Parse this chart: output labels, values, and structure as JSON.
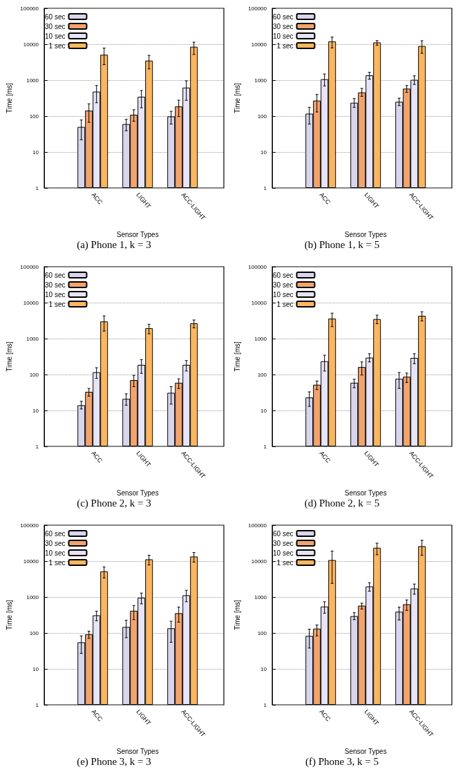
{
  "chart_data": [
    {
      "type": "bar",
      "title": "(a) Phone 1, k = 3",
      "xlabel": "Sensor Types",
      "ylabel": "Time [ms]",
      "categories": [
        "ACC",
        "LIGHT",
        "ACC-LIGHT"
      ],
      "log": true,
      "grid": "y",
      "legend": "top left",
      "ylim": [
        1,
        100000
      ],
      "yticks": [
        1,
        10,
        100,
        1000,
        10000,
        100000
      ],
      "series": [
        {
          "name": "60 sec",
          "color": "#d9d5ec",
          "values": [
            50,
            60,
            98
          ],
          "errors": [
            [
              22,
              78
            ],
            [
              39,
              81
            ],
            [
              60,
              136
            ]
          ]
        },
        {
          "name": "30 sec",
          "color": "#f2a46e",
          "values": [
            142,
            109,
            186
          ],
          "errors": [
            [
              67,
              220
            ],
            [
              72,
              150
            ],
            [
              97,
              277
            ]
          ]
        },
        {
          "name": "10 sec",
          "color": "#e6e4f6",
          "values": [
            480,
            345,
            620
          ],
          "errors": [
            [
              235,
              710
            ],
            [
              170,
              515
            ],
            [
              275,
              960
            ]
          ]
        },
        {
          "name": "1 sec",
          "color": "#fbb660",
          "values": [
            5100,
            3500,
            8500
          ],
          "errors": [
            [
              2700,
              7800
            ],
            [
              2050,
              4900
            ],
            [
              5200,
              11400
            ]
          ]
        }
      ]
    },
    {
      "type": "bar",
      "title": "(b) Phone 1, k = 5",
      "xlabel": "Sensor Types",
      "ylabel": "Time [ms]",
      "categories": [
        "ACC",
        "LIGHT",
        "ACC-LIGHT"
      ],
      "log": true,
      "grid": "y",
      "legend": "top left",
      "ylim": [
        1,
        100000
      ],
      "yticks": [
        1,
        10,
        100,
        1000,
        10000,
        100000
      ],
      "series": [
        {
          "name": "60 sec",
          "color": "#d9d5ec",
          "values": [
            117,
            235,
            250
          ],
          "errors": [
            [
              60,
              175
            ],
            [
              175,
              307
            ],
            [
              196,
              315
            ]
          ]
        },
        {
          "name": "30 sec",
          "color": "#f2a46e",
          "values": [
            270,
            457,
            580
          ],
          "errors": [
            [
              130,
              400
            ],
            [
              355,
              590
            ],
            [
              457,
              710
            ]
          ]
        },
        {
          "name": "10 sec",
          "color": "#e6e4f6",
          "values": [
            1060,
            1360,
            1020
          ],
          "errors": [
            [
              690,
              1480
            ],
            [
              1060,
              1650
            ],
            [
              760,
              1320
            ]
          ]
        },
        {
          "name": "1 sec",
          "color": "#fbb660",
          "values": [
            12000,
            11200,
            8900
          ],
          "errors": [
            [
              7900,
              15800
            ],
            [
              9400,
              12600
            ],
            [
              5600,
              12500
            ]
          ]
        }
      ]
    },
    {
      "type": "bar",
      "title": "(c) Phone 2, k = 3",
      "xlabel": "Sensor Types",
      "ylabel": "Time [ms]",
      "categories": [
        "ACC",
        "LIGHT",
        "ACC-LIGHT"
      ],
      "log": true,
      "grid": "y",
      "legend": "top left",
      "ylim": [
        1,
        100000
      ],
      "yticks": [
        1,
        10,
        100,
        1000,
        10000,
        100000
      ],
      "series": [
        {
          "name": "60 sec",
          "color": "#d9d5ec",
          "values": [
            14,
            21,
            31
          ],
          "errors": [
            [
              11,
              18
            ],
            [
              14,
              29
            ],
            [
              15,
              46
            ]
          ]
        },
        {
          "name": "30 sec",
          "color": "#f2a46e",
          "values": [
            33,
            70,
            59
          ],
          "errors": [
            [
              25,
              41
            ],
            [
              46,
              95
            ],
            [
              41,
              76
            ]
          ]
        },
        {
          "name": "10 sec",
          "color": "#e6e4f6",
          "values": [
            116,
            186,
            186
          ],
          "errors": [
            [
              78,
              155
            ],
            [
              108,
              260
            ],
            [
              125,
              245
            ]
          ]
        },
        {
          "name": "1 sec",
          "color": "#fbb660",
          "values": [
            3000,
            1950,
            2650
          ],
          "errors": [
            [
              1620,
              4300
            ],
            [
              1360,
              2500
            ],
            [
              2000,
              3300
            ]
          ]
        }
      ]
    },
    {
      "type": "bar",
      "title": "(d) Phone 2, k = 5",
      "xlabel": "Sensor Types",
      "ylabel": "Time [ms]",
      "categories": [
        "ACC",
        "LIGHT",
        "ACC-LIGHT"
      ],
      "log": true,
      "grid": "y",
      "legend": "top left",
      "ylim": [
        1,
        100000
      ],
      "yticks": [
        1,
        10,
        100,
        1000,
        10000,
        100000
      ],
      "series": [
        {
          "name": "60 sec",
          "color": "#d9d5ec",
          "values": [
            23,
            59,
            76
          ],
          "errors": [
            [
              13,
              33
            ],
            [
              43,
              74
            ],
            [
              41,
              114
            ]
          ]
        },
        {
          "name": "30 sec",
          "color": "#f2a46e",
          "values": [
            52,
            162,
            87
          ],
          "errors": [
            [
              38,
              66
            ],
            [
              97,
              224
            ],
            [
              60,
              110
            ]
          ]
        },
        {
          "name": "10 sec",
          "color": "#e6e4f6",
          "values": [
            235,
            295,
            290
          ],
          "errors": [
            [
              125,
              345
            ],
            [
              225,
              380
            ],
            [
              200,
              380
            ]
          ]
        },
        {
          "name": "1 sec",
          "color": "#fbb660",
          "values": [
            3600,
            3500,
            4300
          ],
          "errors": [
            [
              2150,
              5100
            ],
            [
              2600,
              4500
            ],
            [
              3100,
              5600
            ]
          ]
        }
      ]
    },
    {
      "type": "bar",
      "title": "(e) Phone 3, k = 3",
      "xlabel": "Sensor Types",
      "ylabel": "Time [ms]",
      "categories": [
        "ACC",
        "LIGHT",
        "ACC-LIGHT"
      ],
      "log": true,
      "grid": "y",
      "legend": "top left",
      "ylim": [
        1,
        100000
      ],
      "yticks": [
        1,
        10,
        100,
        1000,
        10000,
        100000
      ],
      "series": [
        {
          "name": "60 sec",
          "color": "#d9d5ec",
          "values": [
            55,
            147,
            135
          ],
          "errors": [
            [
              27,
              83
            ],
            [
              74,
              225
            ],
            [
              55,
              212
            ]
          ]
        },
        {
          "name": "30 sec",
          "color": "#f2a46e",
          "values": [
            92,
            415,
            355
          ],
          "errors": [
            [
              71,
              112
            ],
            [
              235,
              580
            ],
            [
              200,
              525
            ]
          ]
        },
        {
          "name": "10 sec",
          "color": "#e6e4f6",
          "values": [
            310,
            955,
            1120
          ],
          "errors": [
            [
              219,
              405
            ],
            [
              645,
              1290
            ],
            [
              740,
              1540
            ]
          ]
        },
        {
          "name": "1 sec",
          "color": "#fbb660",
          "values": [
            5200,
            11200,
            13400
          ],
          "errors": [
            [
              3400,
              6900
            ],
            [
              7800,
              14500
            ],
            [
              9400,
              17300
            ]
          ]
        }
      ]
    },
    {
      "type": "bar",
      "title": "(f) Phone 3, k = 5",
      "xlabel": "Sensor Types",
      "ylabel": "Time [ms]",
      "categories": [
        "ACC",
        "LIGHT",
        "ACC-LIGHT"
      ],
      "log": true,
      "grid": "y",
      "legend": "top left",
      "ylim": [
        1,
        100000
      ],
      "yticks": [
        1,
        10,
        100,
        1000,
        10000,
        100000
      ],
      "series": [
        {
          "name": "60 sec",
          "color": "#d9d5ec",
          "values": [
            83,
            295,
            390
          ],
          "errors": [
            [
              38,
              127
            ],
            [
              235,
              365
            ],
            [
              230,
              525
            ]
          ]
        },
        {
          "name": "30 sec",
          "color": "#f2a46e",
          "values": [
            132,
            575,
            630
          ],
          "errors": [
            [
              83,
              167
            ],
            [
              465,
              675
            ],
            [
              425,
              830
            ]
          ]
        },
        {
          "name": "10 sec",
          "color": "#e6e4f6",
          "values": [
            545,
            1970,
            1730
          ],
          "errors": [
            [
              355,
              740
            ],
            [
              1450,
              2500
            ],
            [
              1200,
              2300
            ]
          ]
        },
        {
          "name": "1 sec",
          "color": "#fbb660",
          "values": [
            10700,
            23500,
            26000
          ],
          "errors": [
            [
              2400,
              19000
            ],
            [
              15000,
              31500
            ],
            [
              14500,
              38000
            ]
          ]
        }
      ]
    }
  ]
}
